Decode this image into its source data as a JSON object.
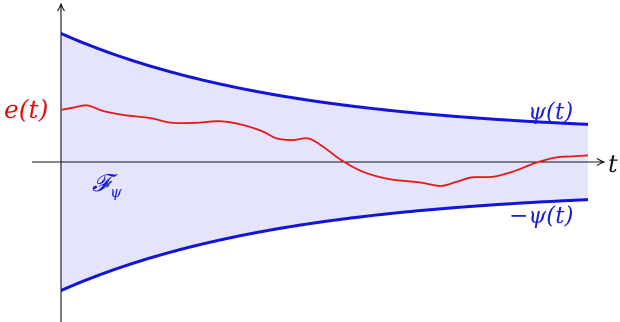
{
  "labels": {
    "error": "e(t)",
    "upper_bound": "ψ(t)",
    "lower_bound": "−ψ(t)",
    "time_axis": "t",
    "funnel": "𝓕",
    "funnel_subscript": "ψ"
  },
  "colors": {
    "funnel_boundary": "#1414d8",
    "funnel_fill": "#e4e4fb",
    "error_curve": "#e81818",
    "axes": "#111111",
    "upper_label": "#1f1fd6",
    "error_label": "#e01010"
  },
  "diagram": {
    "type": "prescribed-performance-funnel",
    "bound": {
      "psi_0": 2.52,
      "psi_inf": 0.54,
      "decay_rate": 2.3
    },
    "t_range": [
      0,
      1.0
    ],
    "error_samples": [
      [
        0.0,
        1.02
      ],
      [
        0.025,
        1.07
      ],
      [
        0.05,
        1.11
      ],
      [
        0.08,
        1.0
      ],
      [
        0.12,
        0.92
      ],
      [
        0.17,
        0.86
      ],
      [
        0.21,
        0.77
      ],
      [
        0.26,
        0.77
      ],
      [
        0.3,
        0.8
      ],
      [
        0.34,
        0.74
      ],
      [
        0.38,
        0.61
      ],
      [
        0.41,
        0.46
      ],
      [
        0.44,
        0.43
      ],
      [
        0.47,
        0.46
      ],
      [
        0.5,
        0.28
      ],
      [
        0.53,
        0.05
      ],
      [
        0.57,
        -0.18
      ],
      [
        0.62,
        -0.33
      ],
      [
        0.68,
        -0.4
      ],
      [
        0.72,
        -0.47
      ],
      [
        0.75,
        -0.39
      ],
      [
        0.78,
        -0.3
      ],
      [
        0.82,
        -0.29
      ],
      [
        0.86,
        -0.18
      ],
      [
        0.9,
        -0.02
      ],
      [
        0.94,
        0.09
      ],
      [
        0.97,
        0.11
      ],
      [
        1.0,
        0.13
      ]
    ]
  }
}
